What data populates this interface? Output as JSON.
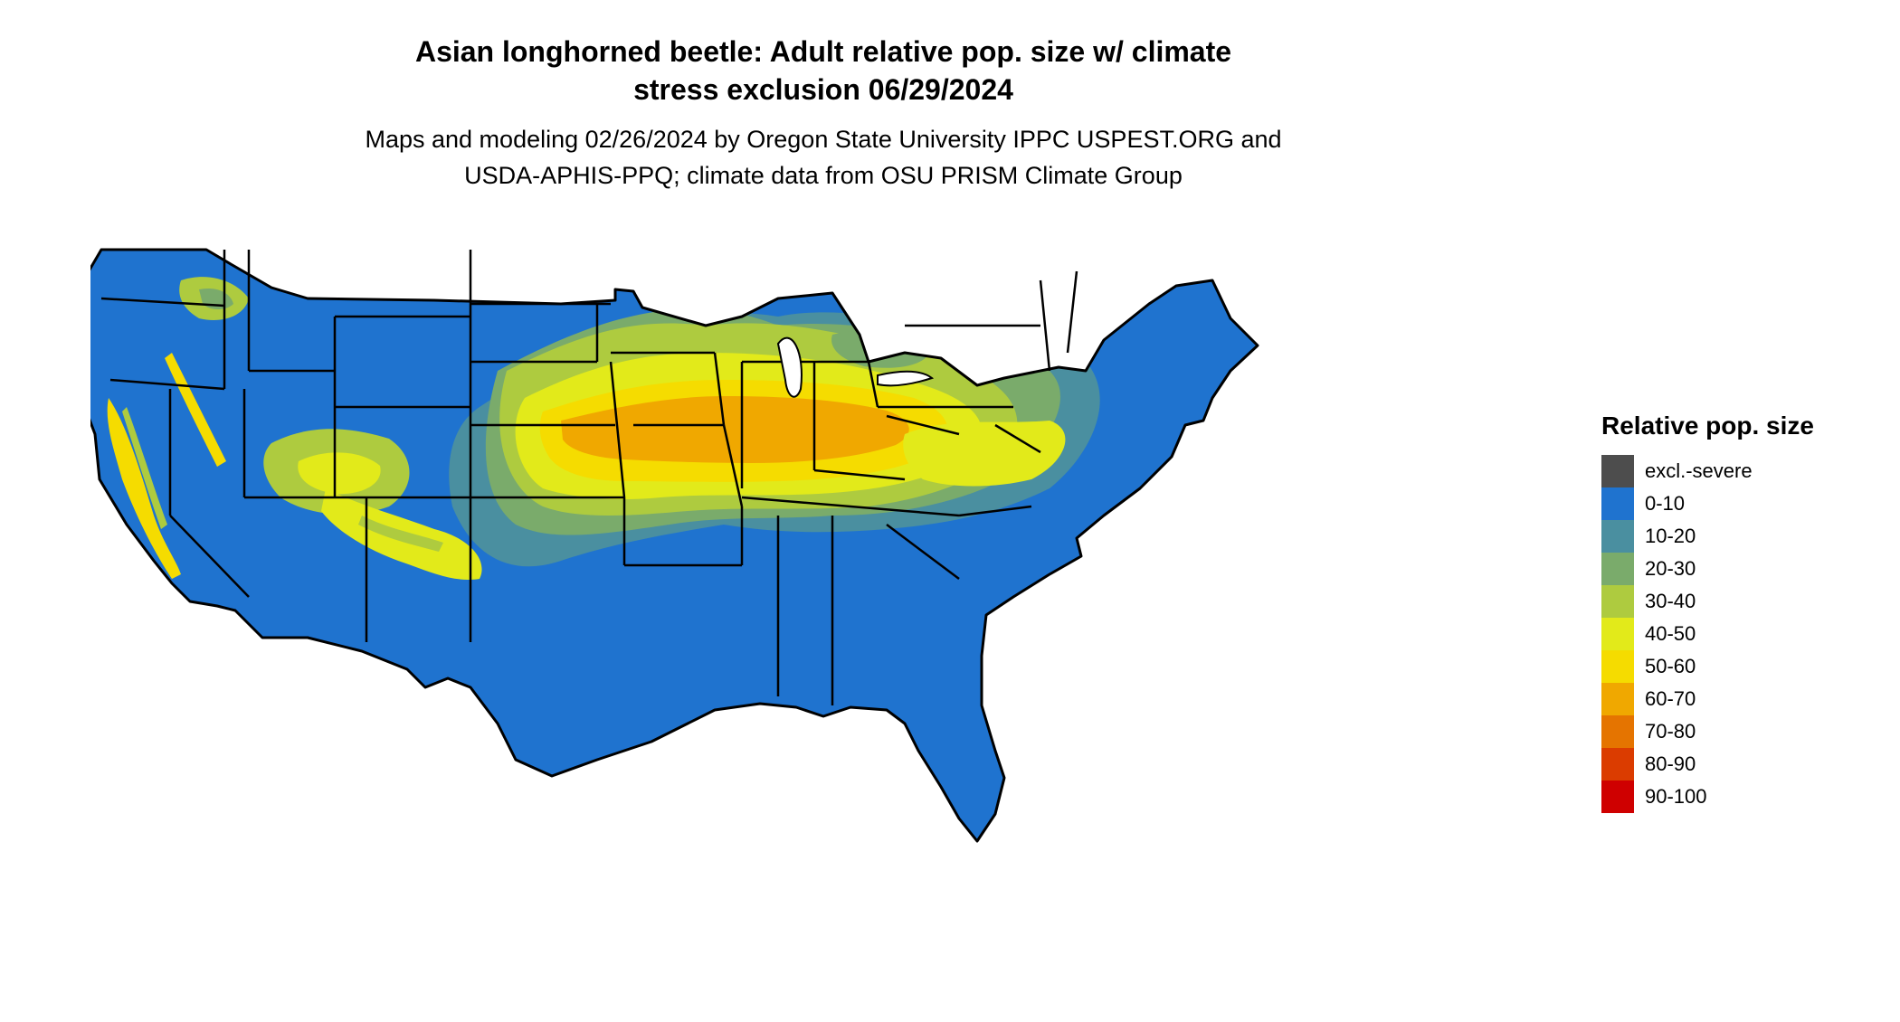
{
  "title_line1": "Asian longhorned beetle: Adult relative pop. size w/ climate",
  "title_line2": "stress exclusion 06/29/2024",
  "subtitle_line1": "Maps and modeling 02/26/2024 by Oregon State University IPPC USPEST.ORG and",
  "subtitle_line2": "USDA-APHIS-PPQ; climate data from OSU PRISM Climate Group",
  "legend": {
    "title": "Relative pop. size",
    "items": [
      {
        "label": "excl.-severe",
        "color": "#4d4d4d"
      },
      {
        "label": "0-10",
        "color": "#1f73cf"
      },
      {
        "label": "10-20",
        "color": "#4a8fa0"
      },
      {
        "label": "20-30",
        "color": "#7aab6b"
      },
      {
        "label": "30-40",
        "color": "#aecb3f"
      },
      {
        "label": "40-50",
        "color": "#e2ea1a"
      },
      {
        "label": "50-60",
        "color": "#f5dc00"
      },
      {
        "label": "60-70",
        "color": "#f0a800"
      },
      {
        "label": "70-80",
        "color": "#e57400"
      },
      {
        "label": "80-90",
        "color": "#db3c00"
      },
      {
        "label": "90-100",
        "color": "#cf0000"
      }
    ]
  },
  "map": {
    "region": "Contiguous United States",
    "base_color": "#1f73cf",
    "border_color": "#000000"
  }
}
